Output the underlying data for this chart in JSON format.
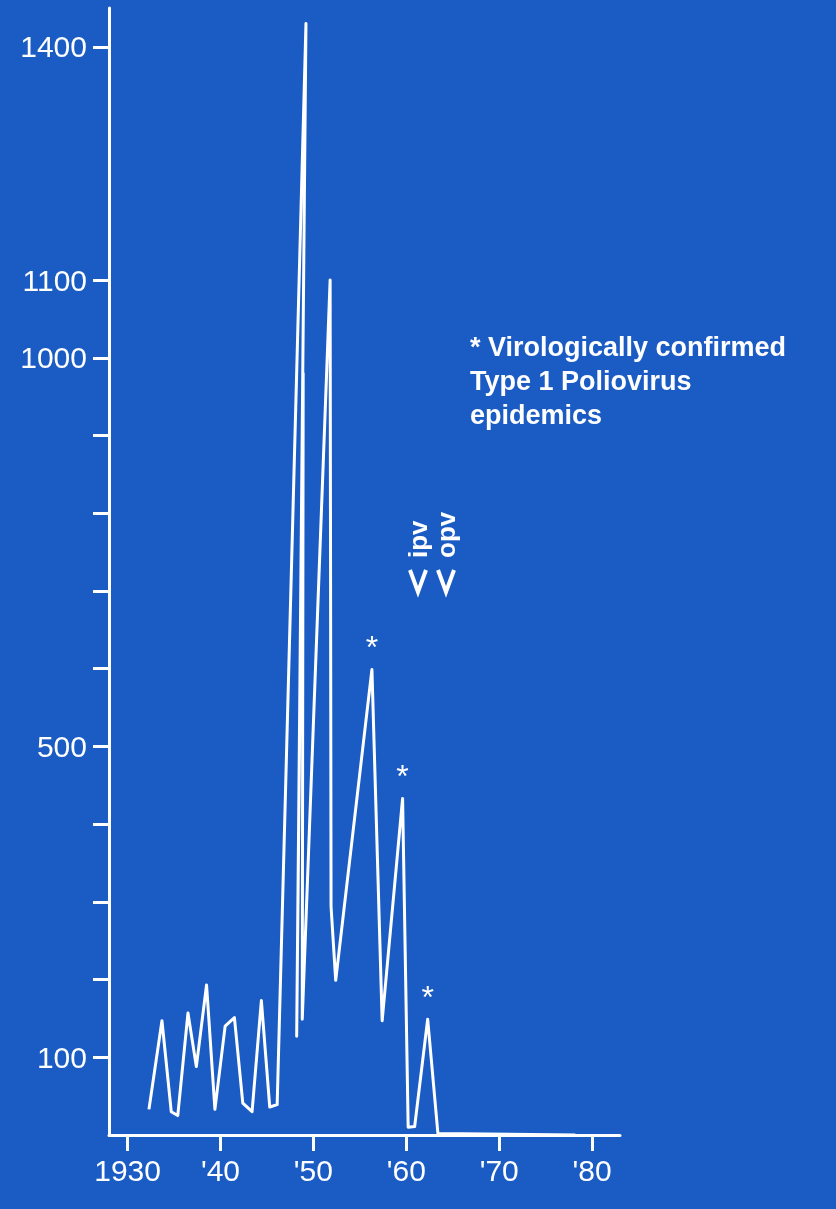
{
  "chart_data": {
    "type": "line",
    "xlim": [
      1928,
      1983
    ],
    "xticks": [
      1930,
      {
        "value": 1940,
        "label": "'40"
      },
      {
        "value": 1950,
        "label": "'50"
      },
      {
        "value": 1960,
        "label": "'60"
      },
      {
        "value": 1970,
        "label": "'70"
      },
      {
        "value": 1980,
        "label": "'80"
      }
    ],
    "ylim": [
      0,
      1450
    ],
    "yticks": [
      100,
      {
        "value": 200,
        "label": null
      },
      {
        "value": 300,
        "label": null
      },
      {
        "value": 400,
        "label": null
      },
      500,
      {
        "value": 600,
        "label": null
      },
      {
        "value": 700,
        "label": null
      },
      {
        "value": 800,
        "label": null
      },
      {
        "value": 900,
        "label": null
      },
      1000,
      1100,
      1400
    ],
    "marker": "none",
    "line_style": "solid",
    "series": [
      {
        "color": "#ffffff",
        "x": [
          1932.3,
          1933.7,
          1934.7,
          1935.4,
          1936.5,
          1937.4,
          1938.5,
          1939.4,
          1940.5,
          1941.5,
          1942.4,
          1943.4,
          1944.4,
          1945.3,
          1946.1,
          1949.2,
          1948.2,
          1948.9,
          1948.8,
          1951.8,
          1951.9,
          1952.4,
          1956.3,
          1957.4,
          1959.6,
          1960.2,
          1960.9,
          1962.3,
          1963.4,
          1978.2
        ],
        "values": [
          33,
          147,
          30,
          25,
          157,
          88,
          193,
          33,
          140,
          151,
          41,
          30,
          173,
          36,
          39,
          1430,
          127,
          980,
          149,
          1100,
          294,
          199,
          599,
          147,
          433,
          10,
          11,
          149,
          2,
          0
        ]
      }
    ],
    "annotations": [
      "* Virologically confirmed Type 1 Poliovirus epidemics",
      {
        "text": "*",
        "x": 1956.3,
        "y": 599
      },
      {
        "text": "*",
        "x": 1959.6,
        "y": 433
      },
      {
        "text": "*",
        "x": 1962.3,
        "y": 149
      },
      "ipv",
      "opv"
    ]
  }
}
